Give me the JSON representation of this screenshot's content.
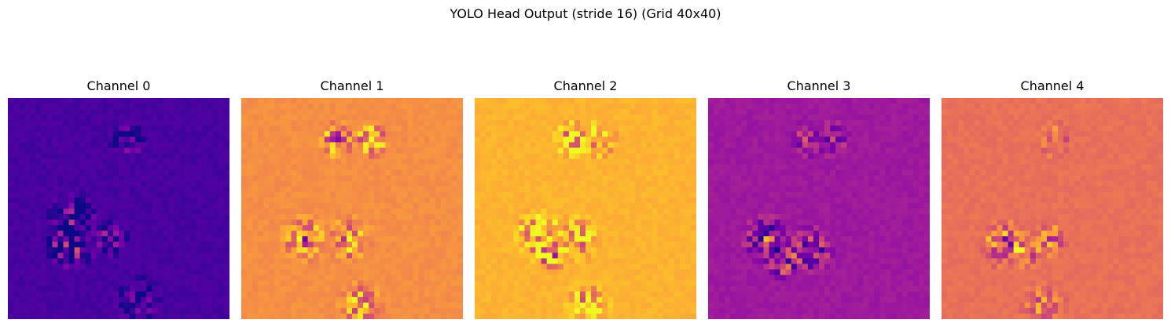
{
  "suptitle": "YOLO Head Output (stride 16) (Grid 40x40)",
  "colormap": "plasma",
  "colormap_stops": [
    "#0d0887",
    "#46039f",
    "#7201a8",
    "#9c179e",
    "#bd3786",
    "#d8576b",
    "#ed7953",
    "#fb9f3a",
    "#fdca26",
    "#f0f921"
  ],
  "chart_data": [
    {
      "type": "heatmap",
      "title": "Channel 0",
      "grid": [
        40,
        40
      ],
      "axis": "off",
      "base_level": 0.12,
      "hotspots": [
        {
          "row": 7,
          "col": 21,
          "radius": 3,
          "intensity": 0.35
        },
        {
          "row": 21,
          "col": 11,
          "radius": 4,
          "intensity": 0.5
        },
        {
          "row": 26,
          "col": 11,
          "radius": 4,
          "intensity": 0.78
        },
        {
          "row": 25,
          "col": 18,
          "radius": 3,
          "intensity": 0.45
        },
        {
          "row": 36,
          "col": 23,
          "radius": 4,
          "intensity": 0.35
        }
      ]
    },
    {
      "type": "heatmap",
      "title": "Channel 1",
      "grid": [
        40,
        40
      ],
      "axis": "off",
      "base_level": 0.73,
      "hotspots": [
        {
          "row": 7,
          "col": 17,
          "radius": 3,
          "intensity": 0.55
        },
        {
          "row": 7,
          "col": 23,
          "radius": 3,
          "intensity": 0.55
        },
        {
          "row": 25,
          "col": 11,
          "radius": 4,
          "intensity": 0.5
        },
        {
          "row": 25,
          "col": 19,
          "radius": 4,
          "intensity": 0.5
        },
        {
          "row": 37,
          "col": 21,
          "radius": 4,
          "intensity": 0.45
        }
      ]
    },
    {
      "type": "heatmap",
      "title": "Channel 2",
      "grid": [
        40,
        40
      ],
      "axis": "off",
      "base_level": 0.83,
      "hotspots": [
        {
          "row": 7,
          "col": 17,
          "radius": 3,
          "intensity": 0.55
        },
        {
          "row": 7,
          "col": 22,
          "radius": 3,
          "intensity": 0.55
        },
        {
          "row": 24,
          "col": 11,
          "radius": 4,
          "intensity": 0.55
        },
        {
          "row": 28,
          "col": 13,
          "radius": 3,
          "intensity": 0.75
        },
        {
          "row": 25,
          "col": 18,
          "radius": 4,
          "intensity": 0.45
        },
        {
          "row": 37,
          "col": 20,
          "radius": 4,
          "intensity": 0.45
        }
      ]
    },
    {
      "type": "heatmap",
      "title": "Channel 3",
      "grid": [
        40,
        40
      ],
      "axis": "off",
      "base_level": 0.34,
      "hotspots": [
        {
          "row": 7,
          "col": 17,
          "radius": 3,
          "intensity": 0.3
        },
        {
          "row": 7,
          "col": 22,
          "radius": 3,
          "intensity": 0.3
        },
        {
          "row": 25,
          "col": 10,
          "radius": 4,
          "intensity": 0.55
        },
        {
          "row": 29,
          "col": 13,
          "radius": 3,
          "intensity": 0.55
        },
        {
          "row": 27,
          "col": 18,
          "radius": 4,
          "intensity": 0.45
        }
      ]
    },
    {
      "type": "heatmap",
      "title": "Channel 4",
      "grid": [
        40,
        40
      ],
      "axis": "off",
      "base_level": 0.64,
      "hotspots": [
        {
          "row": 7,
          "col": 20,
          "radius": 3,
          "intensity": 0.3
        },
        {
          "row": 26,
          "col": 11,
          "radius": 4,
          "intensity": 0.6
        },
        {
          "row": 27,
          "col": 15,
          "radius": 3,
          "intensity": 0.45
        },
        {
          "row": 25,
          "col": 19,
          "radius": 3,
          "intensity": 0.4
        },
        {
          "row": 37,
          "col": 18,
          "radius": 4,
          "intensity": 0.3
        }
      ]
    }
  ]
}
